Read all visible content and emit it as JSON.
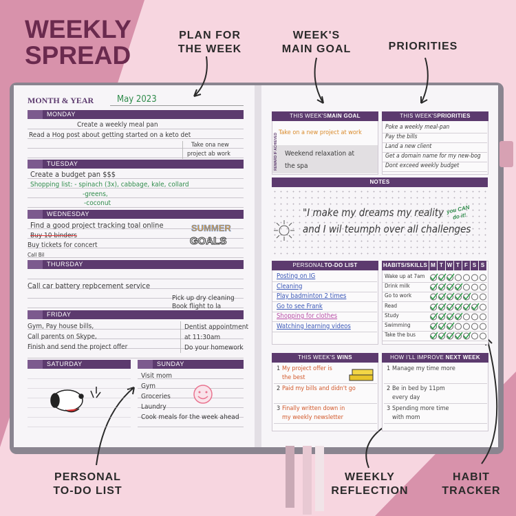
{
  "header": {
    "title_line1": "WEEKLY",
    "title_line2": "SPREAD"
  },
  "callouts": {
    "plan": {
      "line1": "PLAN FOR",
      "line2": "THE WEEK"
    },
    "goal": {
      "line1": "WEEK'S",
      "line2": "MAIN GOAL"
    },
    "priorities": {
      "line1": "PRIORITIES"
    },
    "todo": {
      "line1": "PERSONAL",
      "line2": "TO-DO LIST"
    },
    "reflection": {
      "line1": "WEEKLY",
      "line2": "REFLECTION"
    },
    "habit": {
      "line1": "HABIT",
      "line2": "TRACKER"
    }
  },
  "left_page": {
    "month_label": "MONTH & YEAR",
    "month_value": "May 2023",
    "monday": {
      "name": "MONDAY",
      "entries": [
        "Create a weekly meal pan",
        "Read a Hog post about getting started on a keto det",
        "Take ona new",
        "project ab work"
      ]
    },
    "tuesday": {
      "name": "TUESDAY",
      "entries": [
        "Create a budget pan $$$",
        "Shopping list: - spinach (3x), cabbage, kale, collard",
        "-greens,",
        "-coconut"
      ]
    },
    "wednesday": {
      "name": "WEDNESDAY",
      "entries": [
        "Find a good project tracking toal online",
        "Buy 10 binders",
        "Buy tickets for concert",
        "Call Bil"
      ],
      "sticker_line1": "SUMMER",
      "sticker_line2": "GOALS"
    },
    "thursday": {
      "name": "THURSDAY",
      "entries": [
        "Call car battery repbcement service",
        "Pick up dry cleaning",
        "Book flight to la"
      ]
    },
    "friday": {
      "name": "FRIDAY",
      "entries": [
        "Gym, Pay house bills,",
        "Call parents on Skype,",
        "Finish and send the project offer",
        "Dentist appointment",
        "at 11:30am",
        "Do your homework"
      ]
    },
    "saturday": {
      "name": "SATURDAY"
    },
    "sunday": {
      "name": "SUNDAY",
      "entries": [
        "Visit mom",
        "Gym",
        "Groceries",
        "Laundry",
        "Cook meals for the week ahead"
      ]
    }
  },
  "right_page": {
    "main_goal": {
      "header_pre": "THIS WEEK'S",
      "header": "MAIN GOAL",
      "goal": "Take on a new project at work",
      "reward_label": "REWARD IF ACHIEVED",
      "reward_line1": "Weekend relaxation at",
      "reward_line2": "the spa"
    },
    "priorities": {
      "header_pre": "THIS WEEK'S",
      "header": "PRIORITIES",
      "items": [
        "Poke a weekly meal-pan",
        "Pay the bills",
        "Land a new client",
        "Get a domain name for my new-bog",
        "Dont exceed weekly budget"
      ]
    },
    "notes": {
      "header": "NOTES",
      "line1": "\"I make my dreams my reality",
      "line2": "and I wil teumph over all challenges",
      "sticker_line1": "you CAN",
      "sticker_line2": "do it!"
    },
    "todo": {
      "header_pre": "PERSONAL",
      "header": "TO-DO LIST",
      "items": [
        "Posting on IG",
        "Cleaning",
        "Play badminton 2 times",
        "Go to see Frank",
        "Shopping for clothes",
        "Watching learning videos"
      ]
    },
    "habits": {
      "header": "HABITS/SKILLS",
      "days": [
        "M",
        "T",
        "W",
        "T",
        "F",
        "S",
        "S"
      ],
      "rows": [
        {
          "name": "Wake up at 7am",
          "checks": 3
        },
        {
          "name": "Drink milk",
          "checks": 4
        },
        {
          "name": "Go to work",
          "checks": 5
        },
        {
          "name": "Read",
          "checks": 6
        },
        {
          "name": "Study",
          "checks": 4
        },
        {
          "name": "Swimming",
          "checks": 3
        },
        {
          "name": "Take the bus",
          "checks": 5
        }
      ]
    },
    "wins": {
      "header_pre": "THIS WEEK'S",
      "header": "WINS",
      "items": [
        {
          "number": "1",
          "line1": "My project offer is",
          "line2": "the best"
        },
        {
          "number": "2",
          "line1": "Paid my bills and didn't go"
        },
        {
          "number": "3",
          "line1": "Finally written down in",
          "line2": "my weekly newsletter"
        }
      ]
    },
    "improve": {
      "header_pre": "HOW I'LL IMPROVE",
      "header": "NEXT WEEK",
      "items": [
        {
          "number": "1",
          "line1": "Manage my time more"
        },
        {
          "number": "2",
          "line1": "Be in bed by 11pm",
          "line2": "every day"
        },
        {
          "number": "3",
          "line1": "Spending more time",
          "line2": "with mom"
        }
      ]
    }
  }
}
